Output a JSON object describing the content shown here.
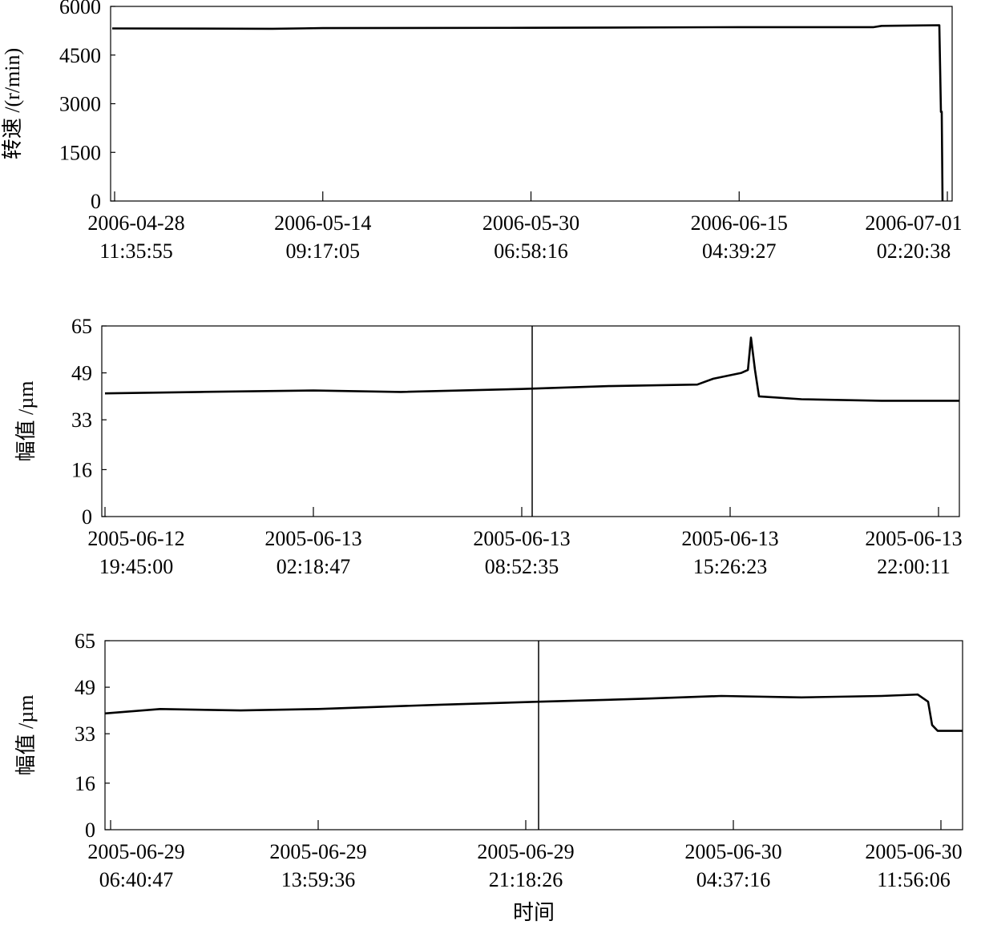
{
  "chart_data": [
    {
      "type": "line",
      "ylabel": "转速 /(r/min)",
      "x": [
        "2006-04-28 07:11:40",
        "2006-05-10 12:48:20",
        "2006-05-14 09:17:05",
        "2006-05-30 06:58:16",
        "2006-06-15 04:39:27",
        "2006-06-25 11:16:58",
        "2006-06-26 01:57:48",
        "2006-06-30 11:39:48",
        "2006-06-30 14:35:58",
        "2006-06-30 16:04:03",
        "2006-06-30 17:32:08"
      ],
      "values": [
        5320,
        5310,
        5330,
        5340,
        5360,
        5360,
        5400,
        5420,
        2750,
        2750,
        0
      ],
      "xlim": [
        "2006-04-28 04:15:30",
        "2006-07-01 11:09:08"
      ],
      "xticks": [
        {
          "value": "2006-04-28 11:35:55",
          "label": [
            "2006-04-28",
            "11:35:55"
          ]
        },
        {
          "value": "2006-05-14 09:17:05",
          "label": [
            "2006-05-14",
            "09:17:05"
          ]
        },
        {
          "value": "2006-05-30 06:58:16",
          "label": [
            "2006-05-30",
            "06:58:16"
          ]
        },
        {
          "value": "2006-06-15 04:39:27",
          "label": [
            "2006-06-15",
            "04:39:27"
          ]
        },
        {
          "value": "2006-07-01 02:20:38",
          "label": [
            "2006-07-01",
            "02:20:38"
          ]
        }
      ],
      "ylim": [
        0,
        6000
      ],
      "yticks": [
        0,
        1500,
        3000,
        4500,
        6000
      ],
      "color": "#000000"
    },
    {
      "type": "line",
      "ylabel": "幅值 /µm",
      "x": [
        "2005-06-12 19:45:00",
        "2005-06-12 22:45:17",
        "2005-06-13 02:18:47",
        "2005-06-13 05:04:00",
        "2005-06-13 08:52:35",
        "2005-06-13 11:37:43",
        "2005-06-13 14:24:16",
        "2005-06-13 14:54:34",
        "2005-06-13 15:47:36",
        "2005-06-13 16:00:03",
        "2005-06-13 16:05:46",
        "2005-06-13 16:13:21",
        "2005-06-13 16:20:55",
        "2005-06-13 17:41:13",
        "2005-06-13 20:12:37",
        "2005-06-13 22:39:34"
      ],
      "values": [
        42,
        42.5,
        43,
        42.5,
        43.5,
        44.5,
        45,
        47,
        49,
        50,
        61,
        50,
        41,
        40,
        39.5,
        39.5
      ],
      "xlim": [
        "2005-06-12 19:38:56",
        "2005-06-13 22:39:34"
      ],
      "xticks": [
        {
          "value": "2005-06-12 19:45:00",
          "label": [
            "2005-06-12",
            "19:45:00"
          ]
        },
        {
          "value": "2005-06-13 02:18:47",
          "label": [
            "2005-06-13",
            "02:18:47"
          ]
        },
        {
          "value": "2005-06-13 08:52:35",
          "label": [
            "2005-06-13",
            "08:52:35"
          ]
        },
        {
          "value": "2005-06-13 15:26:23",
          "label": [
            "2005-06-13",
            "15:26:23"
          ]
        },
        {
          "value": "2005-06-13 22:00:11",
          "label": [
            "2005-06-13",
            "22:00:11"
          ]
        }
      ],
      "ylim": [
        0,
        65
      ],
      "yticks": [
        0,
        16,
        33,
        49,
        65
      ],
      "color": "#000000"
    },
    {
      "type": "line",
      "ylabel": "幅值 /µm",
      "xlabel": "时间",
      "x": [
        "2005-06-29 06:28:55",
        "2005-06-29 08:25:52",
        "2005-06-29 11:15:22",
        "2005-06-29 13:59:36",
        "2005-06-29 18:18:56",
        "2005-06-29 21:45:33",
        "2005-06-30 01:22:20",
        "2005-06-30 04:11:50",
        "2005-06-30 07:01:20",
        "2005-06-30 09:50:40",
        "2005-06-30 11:06:57",
        "2005-06-30 11:28:59",
        "2005-06-30 11:37:27",
        "2005-06-30 11:49:19",
        "2005-06-30 12:41:51"
      ],
      "values": [
        40,
        41.5,
        41,
        41.5,
        43,
        44,
        45,
        46,
        45.5,
        46,
        46.5,
        44,
        36,
        34,
        34
      ],
      "xlim": [
        "2005-06-29 06:28:55",
        "2005-06-30 12:41:51"
      ],
      "xticks": [
        {
          "value": "2005-06-29 06:40:47",
          "label": [
            "2005-06-29",
            "06:40:47"
          ]
        },
        {
          "value": "2005-06-29 13:59:36",
          "label": [
            "2005-06-29",
            "13:59:36"
          ]
        },
        {
          "value": "2005-06-29 21:18:26",
          "label": [
            "2005-06-29",
            "21:18:26"
          ]
        },
        {
          "value": "2005-06-30 04:37:16",
          "label": [
            "2005-06-30",
            "04:37:16"
          ]
        },
        {
          "value": "2005-06-30 11:56:06",
          "label": [
            "2005-06-30",
            "11:56:06"
          ]
        }
      ],
      "ylim": [
        0,
        65
      ],
      "yticks": [
        0,
        16,
        33,
        49,
        65
      ],
      "color": "#000000"
    }
  ]
}
